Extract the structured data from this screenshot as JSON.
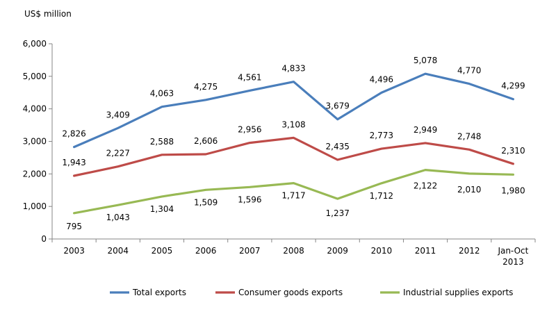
{
  "chart_data": {
    "type": "line",
    "ylabel": "US$ million",
    "ylim": [
      0,
      6000
    ],
    "yticks": [
      "0",
      "1,000",
      "2,000",
      "3,000",
      "4,000",
      "5,000",
      "6,000"
    ],
    "categories": [
      "2003",
      "2004",
      "2005",
      "2006",
      "2007",
      "2008",
      "2009",
      "2010",
      "2011",
      "2012",
      "Jan-Oct 2013"
    ],
    "legend_position": "bottom",
    "grid": false,
    "series": [
      {
        "name": "Total exports",
        "color": "#4a7ebb",
        "values": [
          2826,
          3409,
          4063,
          4275,
          4561,
          4833,
          3679,
          4496,
          5078,
          4770,
          4299
        ],
        "labels": [
          "2,826",
          "3,409",
          "4,063",
          "4,275",
          "4,561",
          "4,833",
          "3,679",
          "4,496",
          "5,078",
          "4,770",
          "4,299"
        ]
      },
      {
        "name": "Consumer goods exports",
        "color": "#be4b48",
        "values": [
          1943,
          2227,
          2588,
          2606,
          2956,
          3108,
          2435,
          2773,
          2949,
          2748,
          2310
        ],
        "labels": [
          "1,943",
          "2,227",
          "2,588",
          "2,606",
          "2,956",
          "3,108",
          "2,435",
          "2,773",
          "2,949",
          "2,748",
          "2,310"
        ]
      },
      {
        "name": "Industrial supplies exports",
        "color": "#98b954",
        "values": [
          795,
          1043,
          1304,
          1509,
          1596,
          1717,
          1237,
          1712,
          2122,
          2010,
          1980
        ],
        "labels": [
          "795",
          "1,043",
          "1,304",
          "1,509",
          "1,596",
          "1,717",
          "1,237",
          "1,712",
          "2,122",
          "2,010",
          "1,980"
        ]
      }
    ]
  }
}
